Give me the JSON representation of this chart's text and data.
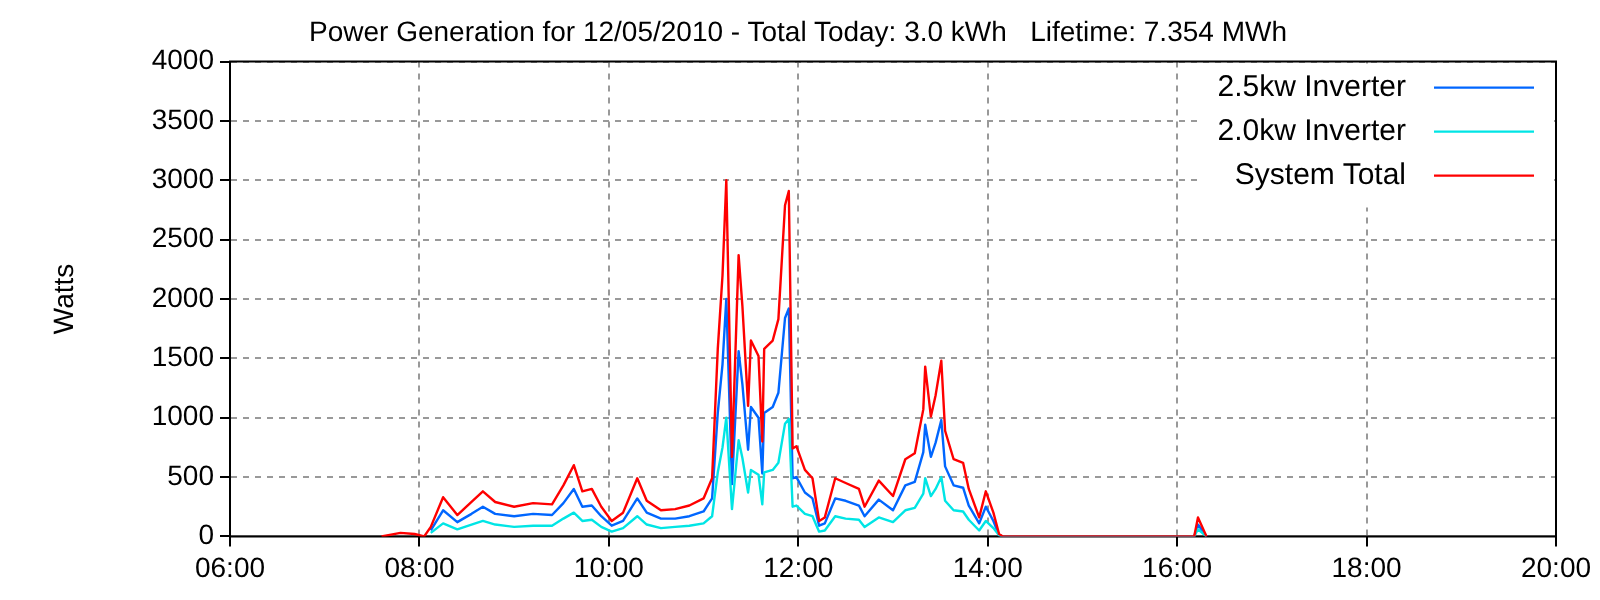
{
  "chart_data": {
    "type": "line",
    "title": "Power Generation for 12/05/2010 - Total Today: 3.0 kWh   Lifetime: 7.354 MWh",
    "ylabel": "Watts",
    "x": [
      7.6,
      7.8,
      7.95,
      8.05,
      8.12,
      8.25,
      8.4,
      8.55,
      8.67,
      8.8,
      9.0,
      9.2,
      9.4,
      9.52,
      9.63,
      9.72,
      9.82,
      9.92,
      10.03,
      10.15,
      10.3,
      10.4,
      10.55,
      10.7,
      10.85,
      11.0,
      11.09,
      11.15,
      11.2,
      11.24,
      11.3,
      11.37,
      11.41,
      11.47,
      11.5,
      11.58,
      11.62,
      11.64,
      11.73,
      11.79,
      11.86,
      11.9,
      11.94,
      11.98,
      12.07,
      12.15,
      12.22,
      12.28,
      12.39,
      12.5,
      12.64,
      12.7,
      12.85,
      13.0,
      13.13,
      13.23,
      13.32,
      13.34,
      13.4,
      13.45,
      13.51,
      13.55,
      13.64,
      13.74,
      13.8,
      13.91,
      13.98,
      14.06,
      14.12,
      14.16,
      16.18,
      16.22,
      16.31
    ],
    "series": [
      {
        "name": "2.5kw Inverter",
        "color": "#0066ff",
        "values": [
          null,
          null,
          null,
          null,
          50,
          220,
          120,
          190,
          250,
          190,
          170,
          190,
          180,
          280,
          400,
          250,
          260,
          170,
          90,
          130,
          320,
          200,
          150,
          150,
          170,
          210,
          320,
          1040,
          1450,
          2000,
          440,
          1560,
          1280,
          730,
          1090,
          1000,
          530,
          1040,
          1090,
          1210,
          1840,
          1920,
          490,
          500,
          370,
          320,
          90,
          110,
          320,
          300,
          260,
          170,
          310,
          220,
          430,
          460,
          710,
          940,
          670,
          790,
          980,
          590,
          430,
          410,
          260,
          110,
          250,
          130,
          10,
          0,
          0,
          100,
          0
        ]
      },
      {
        "name": "2.0kw Inverter",
        "color": "#00e5e5",
        "values": [
          null,
          null,
          null,
          null,
          30,
          110,
          60,
          100,
          130,
          100,
          80,
          90,
          90,
          150,
          200,
          130,
          140,
          80,
          40,
          70,
          170,
          100,
          70,
          80,
          90,
          110,
          170,
          540,
          750,
          1000,
          230,
          810,
          660,
          370,
          560,
          520,
          270,
          540,
          560,
          620,
          950,
          990,
          250,
          260,
          190,
          170,
          40,
          50,
          170,
          150,
          140,
          80,
          160,
          120,
          220,
          240,
          360,
          490,
          340,
          400,
          500,
          300,
          220,
          210,
          140,
          50,
          130,
          70,
          10,
          0,
          0,
          60,
          0
        ]
      },
      {
        "name": "System Total",
        "color": "#ff0000",
        "values": [
          0,
          30,
          20,
          0,
          80,
          330,
          180,
          290,
          380,
          290,
          250,
          280,
          270,
          430,
          600,
          380,
          400,
          250,
          130,
          200,
          490,
          300,
          220,
          230,
          260,
          320,
          490,
          1580,
          2200,
          3000,
          670,
          2370,
          1940,
          1100,
          1650,
          1520,
          800,
          1580,
          1650,
          1830,
          2790,
          2910,
          740,
          760,
          560,
          490,
          130,
          160,
          490,
          450,
          400,
          250,
          470,
          340,
          650,
          700,
          1070,
          1430,
          1010,
          1190,
          1480,
          890,
          650,
          620,
          400,
          160,
          380,
          200,
          20,
          0,
          0,
          160,
          0
        ]
      }
    ],
    "xlim": [
      6,
      20
    ],
    "xticks": [
      {
        "value": 6,
        "label": "06:00"
      },
      {
        "value": 8,
        "label": "08:00"
      },
      {
        "value": 10,
        "label": "10:00"
      },
      {
        "value": 12,
        "label": "12:00"
      },
      {
        "value": 14,
        "label": "14:00"
      },
      {
        "value": 16,
        "label": "16:00"
      },
      {
        "value": 18,
        "label": "18:00"
      },
      {
        "value": 20,
        "label": "20:00"
      }
    ],
    "ylim": [
      0,
      4000
    ],
    "yticks": [
      0,
      500,
      1000,
      1500,
      2000,
      2500,
      3000,
      3500,
      4000
    ],
    "grid": true,
    "legend": "top right",
    "marker": "none",
    "line_style": "solid"
  }
}
